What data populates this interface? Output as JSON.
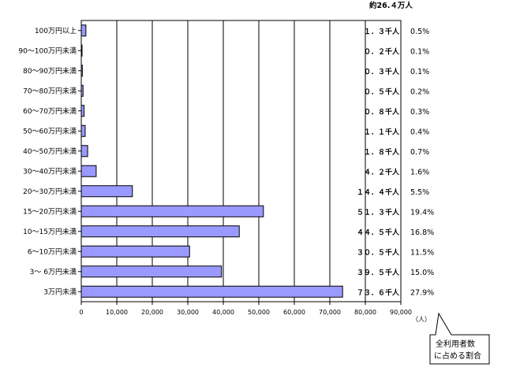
{
  "total_label": "約26.４万人",
  "axis_unit": "（人）",
  "callout_lines": [
    "全利用者数",
    "に占める割合"
  ],
  "colors": {
    "bar_fill": "#9999ff",
    "bar_stroke": "#000000",
    "axis": "#000000"
  },
  "chart_data": {
    "type": "bar",
    "orientation": "horizontal",
    "title": "",
    "xlabel": "（人）",
    "ylabel": "",
    "xlim": [
      0,
      90000
    ],
    "x_ticks": [
      0,
      10000,
      20000,
      30000,
      40000,
      50000,
      60000,
      70000,
      80000,
      90000
    ],
    "x_tick_labels": [
      "0",
      "10,000",
      "20,000",
      "30,000",
      "40,000",
      "50,000",
      "60,000",
      "70,000",
      "80,000",
      "90,000"
    ],
    "grid": "vertical",
    "categories": [
      "100万円以上",
      "90～100万円未満",
      "80～90万円未満",
      "70～80万円未満",
      "60～70万円未満",
      "50～60万円未満",
      "40～50万円未満",
      "30～40万円未満",
      "20～30万円未満",
      "15～20万円未満",
      "10～15万円未満",
      "6～10万円未満",
      "3～ 6万円未満",
      "3万円未満"
    ],
    "values": [
      1300,
      200,
      300,
      500,
      800,
      1100,
      1800,
      4200,
      14400,
      51300,
      44500,
      30500,
      39500,
      73600
    ],
    "value_labels": [
      "１．３千人",
      "０．２千人",
      "０．３千人",
      "０．５千人",
      "０．８千人",
      "１．１千人",
      "１．８千人",
      "４．２千人",
      "１４．４千人",
      "５１．３千人",
      "４４．５千人",
      "３０．５千人",
      "３９．５千人",
      "７３．６千人"
    ],
    "percent_labels": [
      "0.5%",
      "0.1%",
      "0.1%",
      "0.2%",
      "0.3%",
      "0.4%",
      "0.7%",
      "1.6%",
      "5.5%",
      "19.4%",
      "16.8%",
      "11.5%",
      "15.0%",
      "27.9%"
    ]
  }
}
